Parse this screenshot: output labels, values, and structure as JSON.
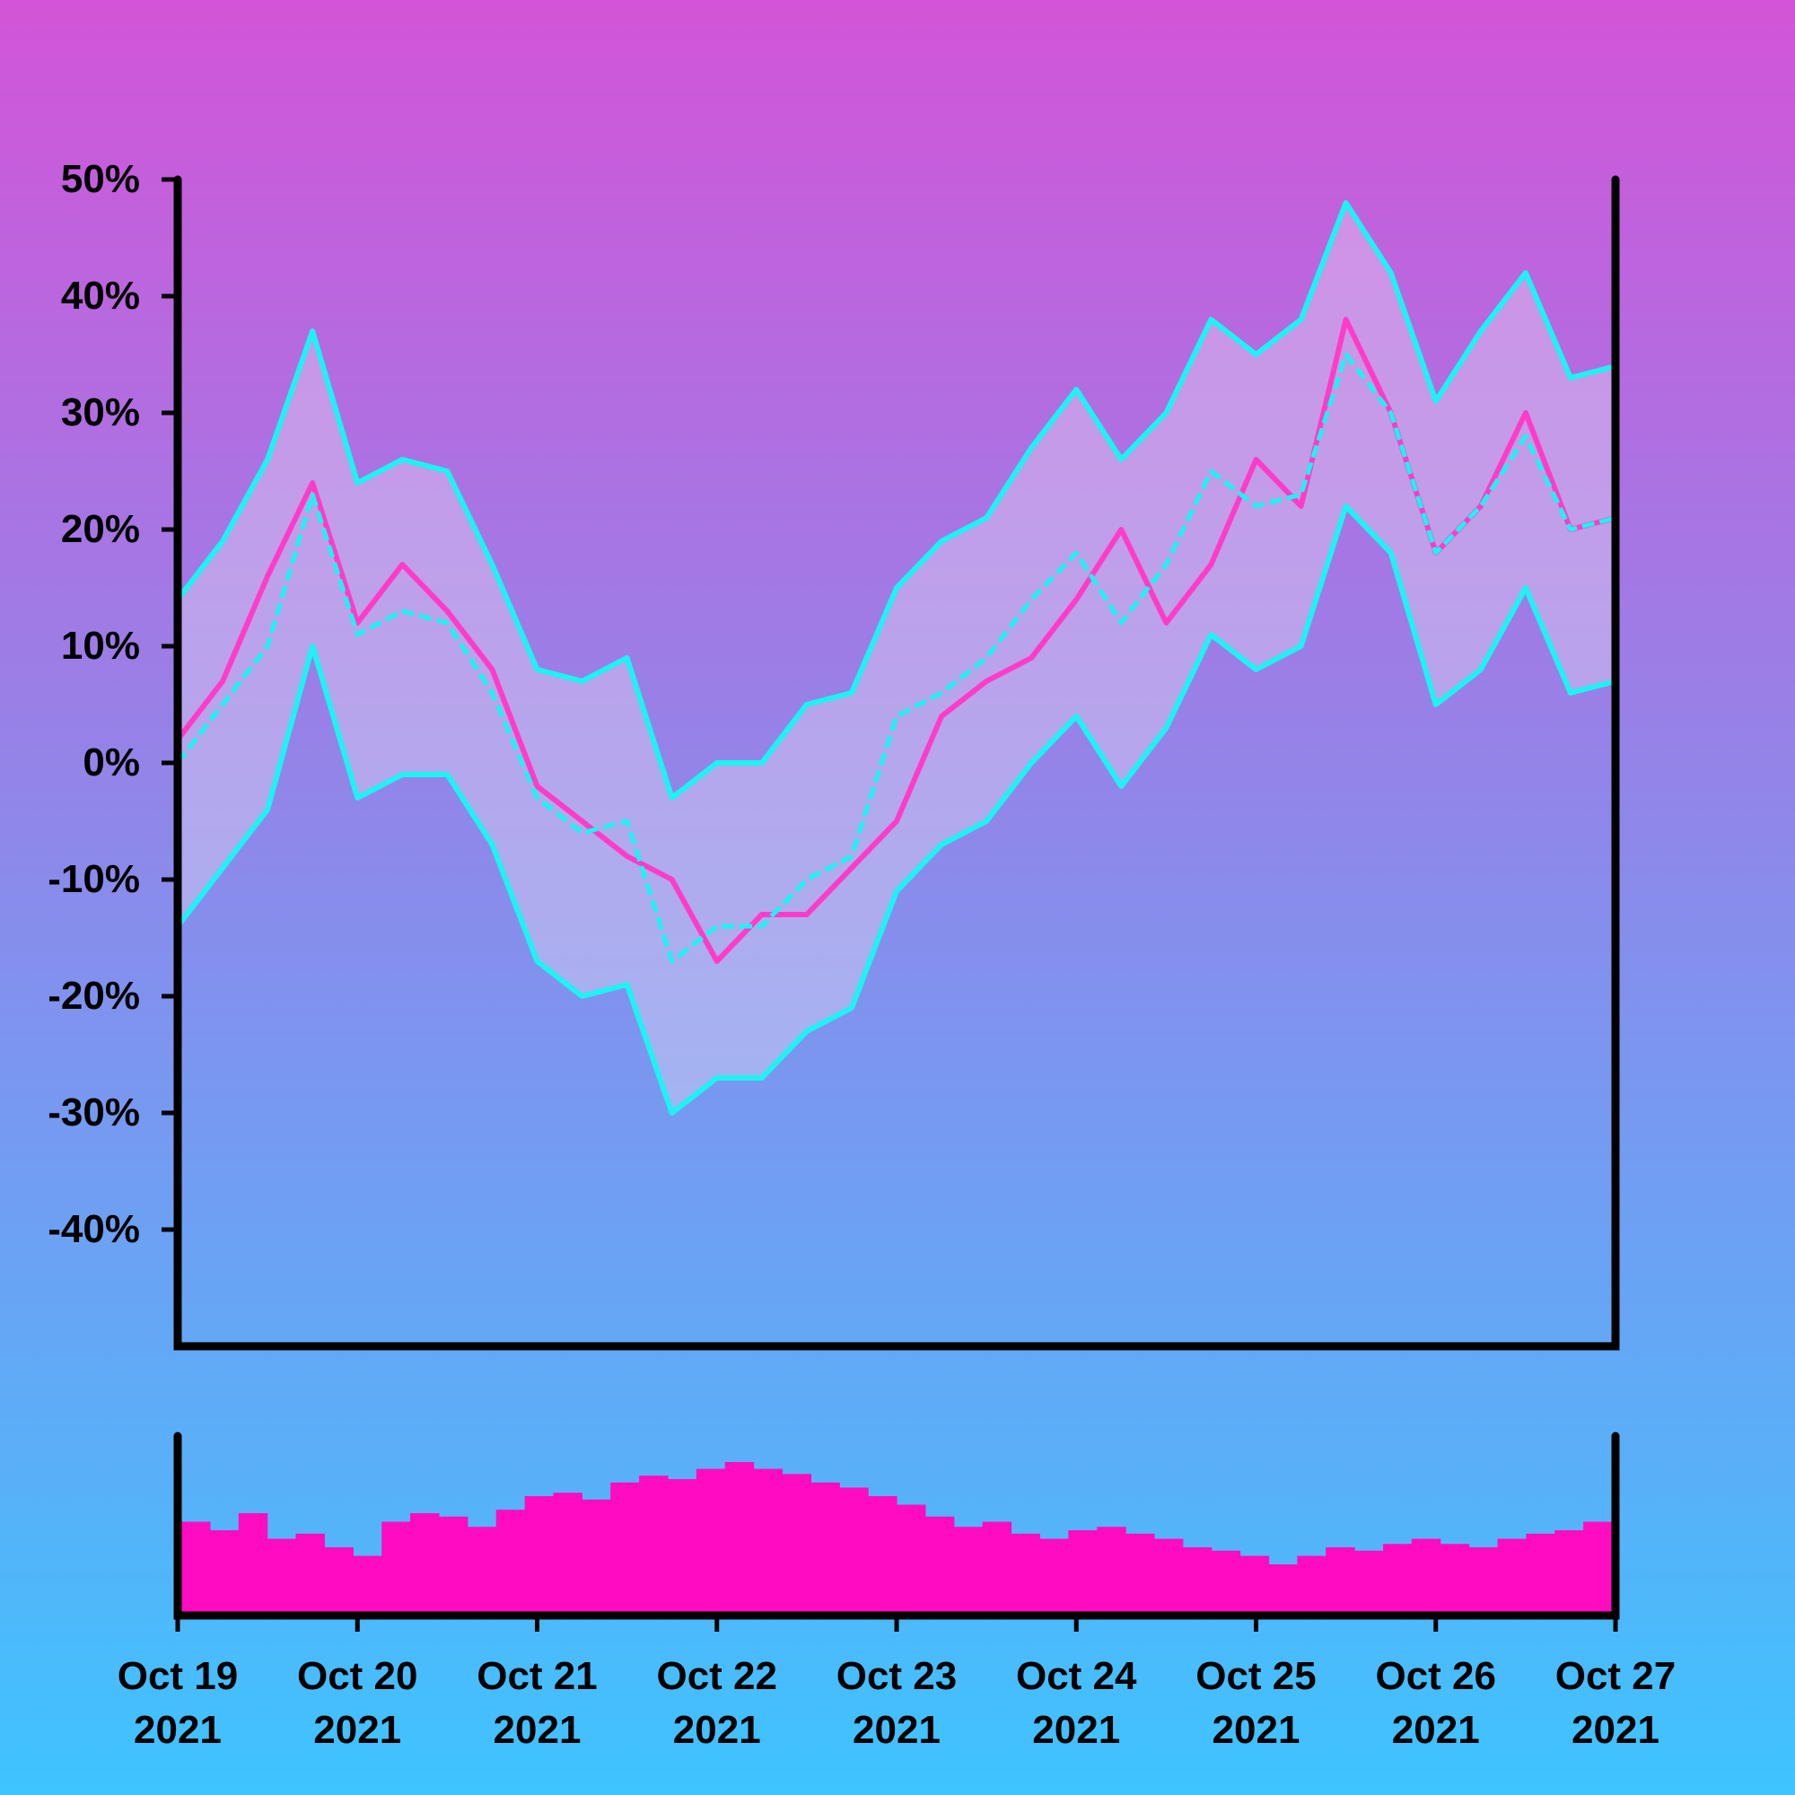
{
  "colors": {
    "background_top": "#d354d8",
    "background_bottom": "#3ec4ff",
    "price_line": "#ff3cc8",
    "band_line": "#1ef2f2",
    "band_fill": "#e6dcf5",
    "volume_bar": "#ff0cc0",
    "axis": "#000000"
  },
  "chart_data": [
    {
      "type": "line",
      "title": "",
      "xlabel": "",
      "ylabel": "",
      "x_range": [
        "2021-10-19",
        "2021-10-27"
      ],
      "x_ticks": [
        {
          "date": "2021-10-19",
          "label_line1": "Oct 19",
          "label_line2": "2021"
        },
        {
          "date": "2021-10-20",
          "label_line1": "Oct 20",
          "label_line2": "2021"
        },
        {
          "date": "2021-10-21",
          "label_line1": "Oct 21",
          "label_line2": "2021"
        },
        {
          "date": "2021-10-22",
          "label_line1": "Oct 22",
          "label_line2": "2021"
        },
        {
          "date": "2021-10-23",
          "label_line1": "Oct 23",
          "label_line2": "2021"
        },
        {
          "date": "2021-10-24",
          "label_line1": "Oct 24",
          "label_line2": "2021"
        },
        {
          "date": "2021-10-25",
          "label_line1": "Oct 25",
          "label_line2": "2021"
        },
        {
          "date": "2021-10-26",
          "label_line1": "Oct 26",
          "label_line2": "2021"
        },
        {
          "date": "2021-10-27",
          "label_line1": "Oct 27",
          "label_line2": "2021"
        }
      ],
      "ylim": [
        -50,
        50
      ],
      "y_ticks": [
        {
          "value": 50,
          "label": "50%"
        },
        {
          "value": 40,
          "label": "40%"
        },
        {
          "value": 30,
          "label": "30%"
        },
        {
          "value": 20,
          "label": "20%"
        },
        {
          "value": 10,
          "label": "10%"
        },
        {
          "value": 0,
          "label": "0%"
        },
        {
          "value": -10,
          "label": "-10%"
        },
        {
          "value": -20,
          "label": "-20%"
        },
        {
          "value": -30,
          "label": "-30%"
        },
        {
          "value": -40,
          "label": "-40%"
        }
      ],
      "grid": false,
      "legend": "none",
      "x": [
        "2021-10-19 00:00",
        "2021-10-19 06:00",
        "2021-10-19 12:00",
        "2021-10-19 18:00",
        "2021-10-20 00:00",
        "2021-10-20 06:00",
        "2021-10-20 12:00",
        "2021-10-20 18:00",
        "2021-10-21 00:00",
        "2021-10-21 06:00",
        "2021-10-21 12:00",
        "2021-10-21 18:00",
        "2021-10-22 00:00",
        "2021-10-22 06:00",
        "2021-10-22 12:00",
        "2021-10-22 18:00",
        "2021-10-23 00:00",
        "2021-10-23 06:00",
        "2021-10-23 12:00",
        "2021-10-23 18:00",
        "2021-10-24 00:00",
        "2021-10-24 06:00",
        "2021-10-24 12:00",
        "2021-10-24 18:00",
        "2021-10-25 00:00",
        "2021-10-25 06:00",
        "2021-10-25 12:00",
        "2021-10-25 18:00",
        "2021-10-26 00:00",
        "2021-10-26 06:00",
        "2021-10-26 12:00",
        "2021-10-26 18:00",
        "2021-10-27 00:00"
      ],
      "series": [
        {
          "role": "price",
          "values": [
            2,
            7,
            16,
            24,
            12,
            17,
            13,
            8,
            -2,
            -5,
            -8,
            -10,
            -17,
            -13,
            -13,
            -9,
            -5,
            4,
            7,
            9,
            14,
            20,
            12,
            17,
            26,
            22,
            38,
            30,
            18,
            22,
            30,
            20,
            21
          ]
        },
        {
          "role": "band_upper",
          "values": [
            14,
            19,
            26,
            37,
            24,
            26,
            25,
            17,
            8,
            7,
            9,
            -3,
            0,
            0,
            5,
            6,
            15,
            19,
            21,
            27,
            32,
            26,
            30,
            38,
            35,
            38,
            48,
            42,
            31,
            37,
            42,
            33,
            34
          ]
        },
        {
          "role": "band_middle",
          "values": [
            0,
            5,
            10,
            23,
            11,
            13,
            12,
            6,
            -3,
            -6,
            -5,
            -17,
            -14,
            -14,
            -10,
            -8,
            4,
            6,
            9,
            14,
            18,
            12,
            17,
            25,
            22,
            23,
            35,
            30,
            18,
            22,
            28,
            20,
            21
          ]
        },
        {
          "role": "band_lower",
          "values": [
            -14,
            -9,
            -4,
            10,
            -3,
            -1,
            -1,
            -7,
            -17,
            -20,
            -19,
            -30,
            -27,
            -27,
            -23,
            -21,
            -11,
            -7,
            -5,
            0,
            4,
            -2,
            3,
            11,
            8,
            10,
            22,
            18,
            5,
            8,
            15,
            6,
            7
          ]
        }
      ]
    },
    {
      "type": "bar",
      "role": "volume",
      "title": "",
      "xlabel": "",
      "ylabel": "",
      "ylim": [
        0,
        100
      ],
      "x_range": [
        "2021-10-19",
        "2021-10-27"
      ],
      "values": [
        55,
        50,
        60,
        45,
        48,
        40,
        35,
        55,
        60,
        58,
        52,
        62,
        70,
        72,
        68,
        78,
        82,
        80,
        86,
        90,
        86,
        83,
        78,
        75,
        70,
        65,
        58,
        52,
        55,
        48,
        45,
        50,
        52,
        48,
        45,
        40,
        38,
        35,
        30,
        35,
        40,
        38,
        42,
        45,
        42,
        40,
        45,
        48,
        50,
        55
      ]
    }
  ]
}
